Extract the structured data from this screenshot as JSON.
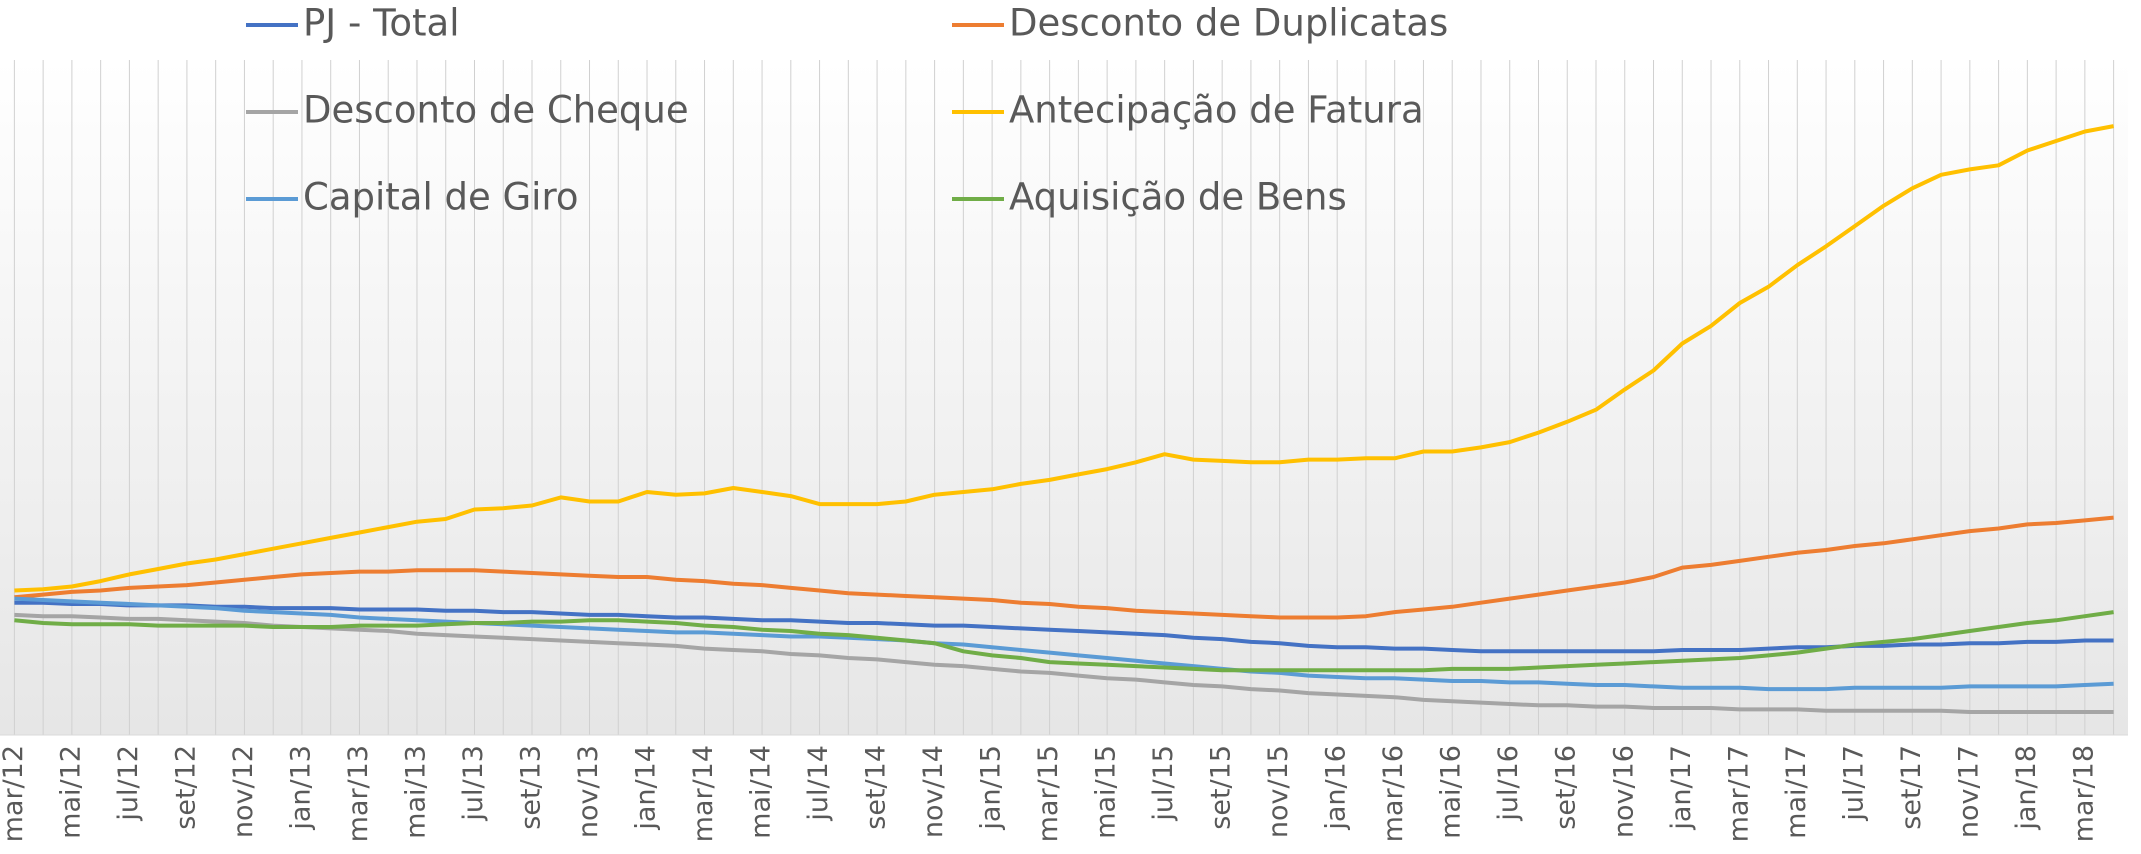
{
  "chart_data": {
    "type": "line",
    "categories": [
      "mar/12",
      null,
      "mai/12",
      null,
      "jul/12",
      null,
      "set/12",
      null,
      "nov/12",
      null,
      "jan/13",
      null,
      "mar/13",
      null,
      "mai/13",
      null,
      "jul/13",
      null,
      "set/13",
      null,
      "nov/13",
      null,
      "jan/14",
      null,
      "mar/14",
      null,
      "mai/14",
      null,
      "jul/14",
      null,
      "set/14",
      null,
      "nov/14",
      null,
      "jan/15",
      null,
      "mar/15",
      null,
      "mai/15",
      null,
      "jul/15",
      null,
      "set/15",
      null,
      "nov/15",
      null,
      "jan/16",
      null,
      "mar/16",
      null,
      "mai/16",
      null,
      "jul/16",
      null,
      "set/16",
      null,
      "nov/16",
      null,
      "jan/17",
      null,
      "mar/17",
      null,
      "mai/17",
      null,
      "jul/17",
      null,
      "set/17",
      null,
      "nov/17",
      null,
      "jan/18",
      null,
      "mar/18",
      null
    ],
    "ylim": [
      0,
      500
    ],
    "series": [
      {
        "name": "PJ - Total",
        "color": "#4472c4",
        "values": [
          98,
          98,
          97,
          97,
          96,
          96,
          96,
          95,
          95,
          94,
          94,
          94,
          93,
          93,
          93,
          92,
          92,
          91,
          91,
          90,
          89,
          89,
          88,
          87,
          87,
          86,
          85,
          85,
          84,
          83,
          83,
          82,
          81,
          81,
          80,
          79,
          78,
          77,
          76,
          75,
          74,
          72,
          71,
          69,
          68,
          66,
          65,
          65,
          64,
          64,
          63,
          62,
          62,
          62,
          62,
          62,
          62,
          62,
          63,
          63,
          63,
          64,
          65,
          65,
          66,
          66,
          67,
          67,
          68,
          68,
          69,
          69,
          70,
          70
        ]
      },
      {
        "name": "Desconto de Duplicatas",
        "color": "#ed7d31",
        "values": [
          102,
          104,
          106,
          107,
          109,
          110,
          111,
          113,
          115,
          117,
          119,
          120,
          121,
          121,
          122,
          122,
          122,
          121,
          120,
          119,
          118,
          117,
          117,
          115,
          114,
          112,
          111,
          109,
          107,
          105,
          104,
          103,
          102,
          101,
          100,
          98,
          97,
          95,
          94,
          92,
          91,
          90,
          89,
          88,
          87,
          87,
          87,
          88,
          91,
          93,
          95,
          98,
          101,
          104,
          107,
          110,
          113,
          117,
          124,
          126,
          129,
          132,
          135,
          137,
          140,
          142,
          145,
          148,
          151,
          153,
          156,
          157,
          159,
          161
        ]
      },
      {
        "name": "Desconto de Cheque",
        "color": "#a5a5a5",
        "values": [
          89,
          88,
          88,
          87,
          86,
          86,
          85,
          84,
          83,
          81,
          80,
          79,
          78,
          77,
          75,
          74,
          73,
          72,
          71,
          70,
          69,
          68,
          67,
          66,
          64,
          63,
          62,
          60,
          59,
          57,
          56,
          54,
          52,
          51,
          49,
          47,
          46,
          44,
          42,
          41,
          39,
          37,
          36,
          34,
          33,
          31,
          30,
          29,
          28,
          26,
          25,
          24,
          23,
          22,
          22,
          21,
          21,
          20,
          20,
          20,
          19,
          19,
          19,
          18,
          18,
          18,
          18,
          18,
          17,
          17,
          17,
          17,
          17,
          17
        ]
      },
      {
        "name": "Antecipação de Fatura",
        "color": "#ffc000",
        "values": [
          107,
          108,
          110,
          114,
          119,
          123,
          127,
          130,
          134,
          138,
          142,
          146,
          150,
          154,
          158,
          160,
          167,
          168,
          170,
          176,
          173,
          173,
          180,
          178,
          179,
          183,
          180,
          177,
          171,
          171,
          171,
          173,
          178,
          180,
          182,
          186,
          189,
          193,
          197,
          202,
          208,
          204,
          203,
          202,
          202,
          204,
          204,
          205,
          205,
          210,
          210,
          213,
          217,
          224,
          232,
          241,
          256,
          270,
          290,
          303,
          320,
          332,
          348,
          362,
          377,
          392,
          405,
          415,
          419,
          422,
          433,
          440,
          447,
          451
        ]
      },
      {
        "name": "Capital de Giro",
        "color": "#5b9bd5",
        "values": [
          101,
          100,
          99,
          98,
          97,
          96,
          95,
          94,
          92,
          91,
          90,
          89,
          87,
          86,
          85,
          84,
          83,
          82,
          81,
          80,
          79,
          78,
          77,
          76,
          76,
          75,
          74,
          73,
          73,
          72,
          71,
          70,
          68,
          67,
          65,
          63,
          61,
          59,
          57,
          55,
          53,
          51,
          49,
          47,
          46,
          44,
          43,
          42,
          42,
          41,
          40,
          40,
          39,
          39,
          38,
          37,
          37,
          36,
          35,
          35,
          35,
          34,
          34,
          34,
          35,
          35,
          35,
          35,
          36,
          36,
          36,
          36,
          37,
          38
        ]
      },
      {
        "name": "Aquisição de Bens",
        "color": "#70ad47",
        "values": [
          85,
          83,
          82,
          82,
          82,
          81,
          81,
          81,
          81,
          80,
          80,
          80,
          81,
          81,
          81,
          82,
          83,
          83,
          84,
          84,
          85,
          85,
          84,
          83,
          81,
          80,
          78,
          77,
          75,
          74,
          72,
          70,
          68,
          62,
          59,
          57,
          54,
          53,
          52,
          51,
          50,
          49,
          48,
          48,
          48,
          48,
          48,
          48,
          48,
          48,
          49,
          49,
          49,
          50,
          51,
          52,
          53,
          54,
          55,
          56,
          57,
          59,
          61,
          64,
          67,
          69,
          71,
          74,
          77,
          80,
          83,
          85,
          88,
          91
        ]
      }
    ]
  }
}
